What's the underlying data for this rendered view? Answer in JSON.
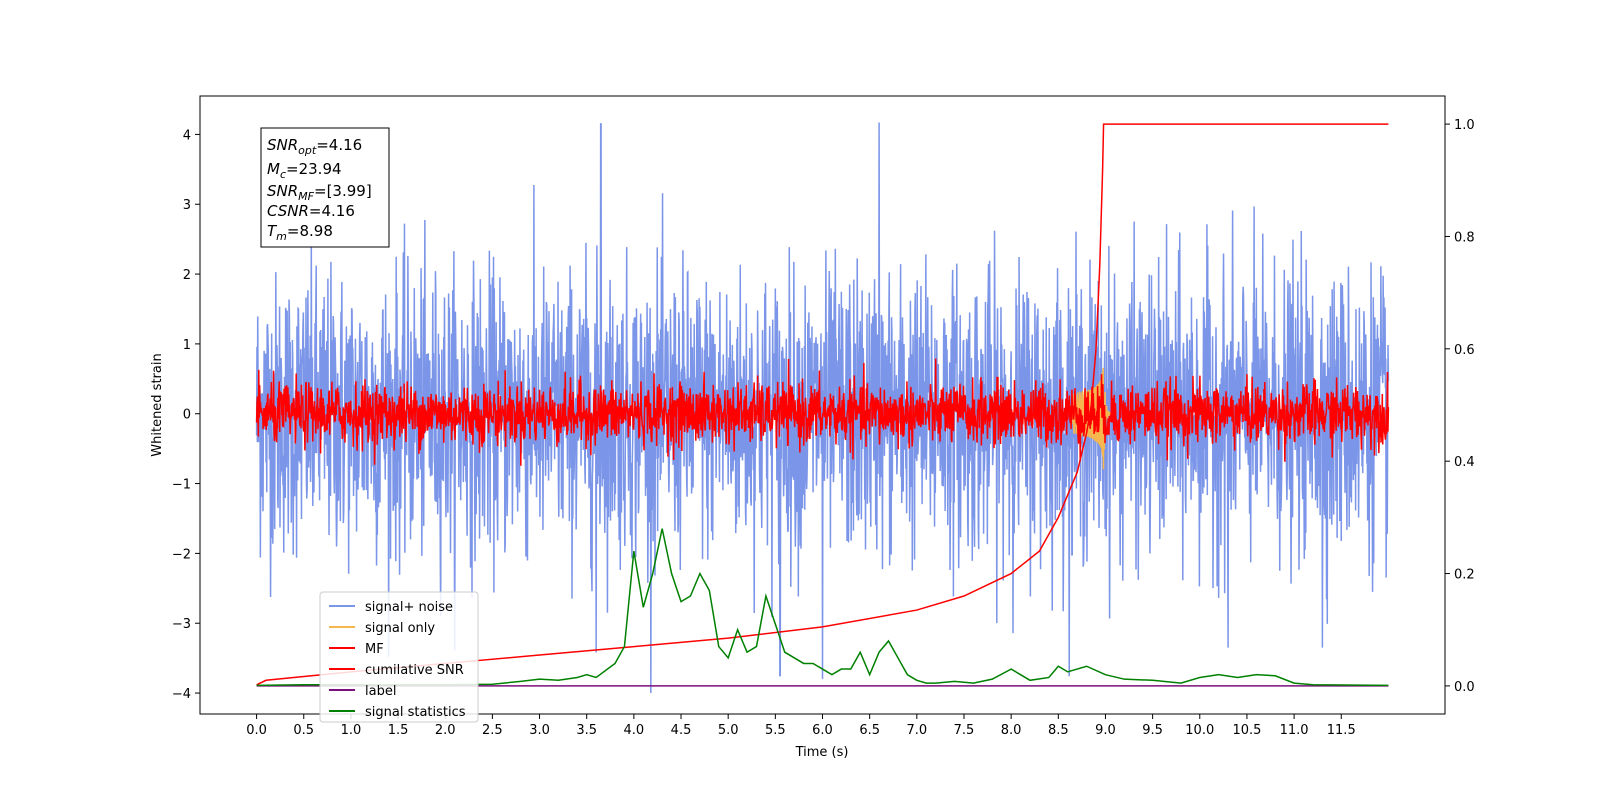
{
  "chart_data": {
    "type": "line",
    "xlabel": "Time (s)",
    "ylabel": "Whitened strain",
    "x_range": [
      -0.6,
      12.6
    ],
    "ylim_left": [
      -4.3,
      4.55
    ],
    "ylim_right": [
      -0.05,
      1.05
    ],
    "x_ticks": [
      "0.0",
      "0.5",
      "1.0",
      "1.5",
      "2.0",
      "2.5",
      "3.0",
      "3.5",
      "4.0",
      "4.5",
      "5.0",
      "5.5",
      "6.0",
      "6.5",
      "7.0",
      "7.5",
      "8.0",
      "8.5",
      "9.0",
      "9.5",
      "10.0",
      "10.5",
      "11.0",
      "11.5"
    ],
    "y_ticks_left": [
      "−4",
      "−3",
      "−2",
      "−1",
      "0",
      "1",
      "2",
      "3",
      "4"
    ],
    "y_ticks_right": [
      "0.0",
      "0.2",
      "0.4",
      "0.6",
      "0.8",
      "1.0"
    ],
    "grid": false,
    "legend_position": "lower-left",
    "annotation": {
      "snr_opt": {
        "sym": "SNR",
        "sub": "opt",
        "value": "=4.16"
      },
      "mc": {
        "sym": "M",
        "sub": "c",
        "value": "=23.94"
      },
      "snr_mf": {
        "sym": "SNR",
        "sub": "MF",
        "value": "=[3.99]"
      },
      "csnr": {
        "sym": "CSNR",
        "value": "=4.16"
      },
      "tm": {
        "sym": "T",
        "sub": "m",
        "value": "=8.98"
      }
    },
    "series": [
      {
        "name": "signal+ noise",
        "color": "#7b95e8",
        "axis": "left",
        "kind": "noise",
        "center": 0.0,
        "sigma": 1.0,
        "x_start": 0.0,
        "x_end": 12.0,
        "spikes": [
          [
            3.65,
            4.15
          ],
          [
            6.6,
            4.17
          ],
          [
            3.6,
            -3.42
          ],
          [
            5.55,
            -3.75
          ],
          [
            6.0,
            -3.8
          ],
          [
            11.3,
            -3.35
          ],
          [
            10.3,
            -3.35
          ]
        ]
      },
      {
        "name": "signal only",
        "color": "#f5b74e",
        "axis": "left",
        "kind": "chirp",
        "peak_time": 8.98,
        "peak_amplitude": 0.85
      },
      {
        "name": "MF",
        "color": "#ff0000",
        "axis": "left",
        "kind": "noise",
        "center": 0.0,
        "sigma": 0.22,
        "x_start": 0.0,
        "x_end": 12.0
      },
      {
        "name": "cumilative SNR",
        "color": "#ff0000",
        "axis": "right",
        "x": [
          0.0,
          0.1,
          1.0,
          2.0,
          3.0,
          4.0,
          5.0,
          6.0,
          7.0,
          7.5,
          8.0,
          8.3,
          8.5,
          8.7,
          8.8,
          8.85,
          8.9,
          8.94,
          8.97,
          8.98,
          12.0
        ],
        "y": [
          0.002,
          0.01,
          0.025,
          0.04,
          0.055,
          0.07,
          0.085,
          0.105,
          0.135,
          0.16,
          0.2,
          0.24,
          0.3,
          0.38,
          0.45,
          0.5,
          0.6,
          0.75,
          0.92,
          1.0,
          1.0
        ]
      },
      {
        "name": "label",
        "color": "#7b0f7b",
        "axis": "right",
        "x": [
          0.0,
          12.0
        ],
        "y": [
          0.0,
          0.0
        ]
      },
      {
        "name": "signal statistics",
        "color": "#008000",
        "axis": "right",
        "x": [
          0.0,
          0.5,
          1.0,
          1.5,
          2.0,
          2.5,
          2.8,
          3.0,
          3.2,
          3.4,
          3.5,
          3.6,
          3.8,
          3.9,
          4.0,
          4.1,
          4.2,
          4.3,
          4.4,
          4.5,
          4.6,
          4.7,
          4.8,
          4.9,
          5.0,
          5.1,
          5.2,
          5.3,
          5.4,
          5.5,
          5.6,
          5.7,
          5.8,
          5.9,
          6.0,
          6.1,
          6.2,
          6.3,
          6.4,
          6.5,
          6.6,
          6.7,
          6.8,
          6.9,
          7.0,
          7.1,
          7.2,
          7.4,
          7.6,
          7.8,
          8.0,
          8.1,
          8.2,
          8.4,
          8.5,
          8.6,
          8.8,
          9.0,
          9.2,
          9.5,
          9.8,
          10.0,
          10.2,
          10.4,
          10.6,
          10.8,
          11.0,
          11.2,
          12.0
        ],
        "y": [
          0.001,
          0.002,
          0.002,
          0.002,
          0.002,
          0.003,
          0.008,
          0.012,
          0.01,
          0.015,
          0.02,
          0.015,
          0.04,
          0.07,
          0.24,
          0.14,
          0.2,
          0.28,
          0.2,
          0.15,
          0.16,
          0.2,
          0.17,
          0.07,
          0.05,
          0.1,
          0.06,
          0.07,
          0.16,
          0.11,
          0.06,
          0.05,
          0.04,
          0.04,
          0.03,
          0.02,
          0.03,
          0.03,
          0.06,
          0.02,
          0.06,
          0.08,
          0.05,
          0.02,
          0.01,
          0.005,
          0.005,
          0.008,
          0.005,
          0.012,
          0.03,
          0.02,
          0.01,
          0.015,
          0.035,
          0.025,
          0.035,
          0.02,
          0.012,
          0.01,
          0.005,
          0.015,
          0.02,
          0.015,
          0.02,
          0.018,
          0.005,
          0.002,
          0.001
        ]
      }
    ]
  }
}
